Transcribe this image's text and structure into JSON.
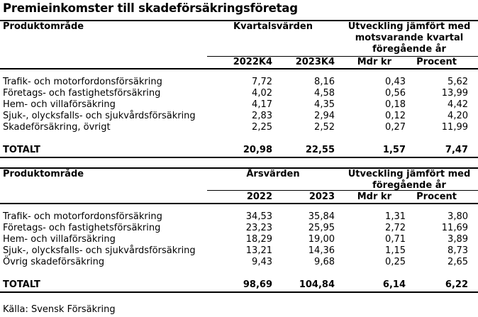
{
  "title": "Premieinkomster till skadeförsäkringsföretag",
  "quarterly": {
    "col_product": "Produktområde",
    "group_values": "Kvartalsvärden",
    "group_change_lines": [
      "Utveckling jämfört med",
      "motsvarande kvartal",
      "föregående år"
    ],
    "subheaders": [
      "2022K4",
      "2023K4",
      "Mdr kr",
      "Procent"
    ],
    "rows": [
      {
        "label": "Trafik- och motorfordonsförsäkring",
        "v1": "7,72",
        "v2": "8,16",
        "mdr": "0,43",
        "pct": "5,62"
      },
      {
        "label": "Företags- och fastighetsförsäkring",
        "v1": "4,02",
        "v2": "4,58",
        "mdr": "0,56",
        "pct": "13,99"
      },
      {
        "label": "Hem- och villaförsäkring",
        "v1": "4,17",
        "v2": "4,35",
        "mdr": "0,18",
        "pct": "4,42"
      },
      {
        "label": "Sjuk-, olycksfalls- och sjukvårdsförsäkring",
        "v1": "2,83",
        "v2": "2,94",
        "mdr": "0,12",
        "pct": "4,20"
      },
      {
        "label": "Skadeförsäkring, övrigt",
        "v1": "2,25",
        "v2": "2,52",
        "mdr": "0,27",
        "pct": "11,99"
      }
    ],
    "total": {
      "label": "TOTALT",
      "v1": "20,98",
      "v2": "22,55",
      "mdr": "1,57",
      "pct": "7,47"
    }
  },
  "annual": {
    "col_product": "Produktområde",
    "group_values": "Årsvärden",
    "group_change_lines": [
      "Utveckling jämfört med",
      "föregående år"
    ],
    "subheaders": [
      "2022",
      "2023",
      "Mdr kr",
      "Procent"
    ],
    "rows": [
      {
        "label": "Trafik- och motorfordonsförsäkring",
        "v1": "34,53",
        "v2": "35,84",
        "mdr": "1,31",
        "pct": "3,80"
      },
      {
        "label": "Företags- och fastighetsförsäkring",
        "v1": "23,23",
        "v2": "25,95",
        "mdr": "2,72",
        "pct": "11,69"
      },
      {
        "label": "Hem- och villaförsäkring",
        "v1": "18,29",
        "v2": "19,00",
        "mdr": "0,71",
        "pct": "3,89"
      },
      {
        "label": "Sjuk-, olycksfalls- och sjukvårdsförsäkring",
        "v1": "13,21",
        "v2": "14,36",
        "mdr": "1,15",
        "pct": "8,73"
      },
      {
        "label": "Övrig skadeförsäkring",
        "v1": "9,43",
        "v2": "9,68",
        "mdr": "0,25",
        "pct": "2,65"
      }
    ],
    "total": {
      "label": "TOTALT",
      "v1": "98,69",
      "v2": "104,84",
      "mdr": "6,14",
      "pct": "6,22"
    }
  },
  "source": "Källa: Svensk Försäkring"
}
